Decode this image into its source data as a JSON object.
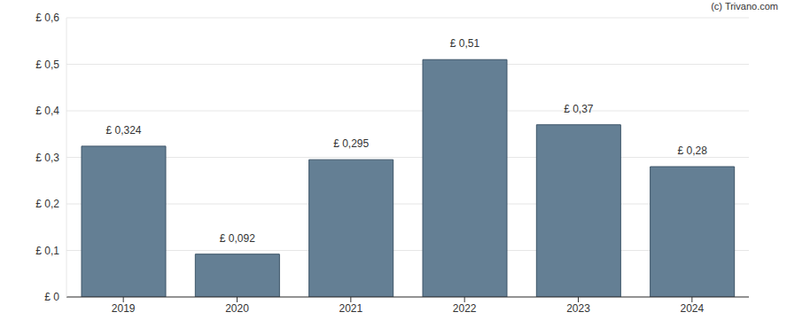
{
  "chart_data": {
    "type": "bar",
    "annotations": [
      "(c) Trivano.com"
    ],
    "categories": [
      "2019",
      "2020",
      "2021",
      "2022",
      "2023",
      "2024"
    ],
    "values": [
      0.324,
      0.092,
      0.295,
      0.51,
      0.37,
      0.28
    ],
    "value_labels": [
      "£ 0,324",
      "£ 0,092",
      "£ 0,295",
      "£ 0,51",
      "£ 0,37",
      "£ 0,28"
    ],
    "data_labels": true,
    "color": "#647f94",
    "ylim": [
      0,
      0.6
    ],
    "yticks": [
      {
        "value": 0,
        "label": "£ 0"
      },
      {
        "value": 0.1,
        "label": "£ 0,1"
      },
      {
        "value": 0.2,
        "label": "£ 0,2"
      },
      {
        "value": 0.3,
        "label": "£ 0,3"
      },
      {
        "value": 0.4,
        "label": "£ 0,4"
      },
      {
        "value": 0.5,
        "label": "£ 0,5"
      },
      {
        "value": 0.6,
        "label": "£ 0,6"
      }
    ],
    "grid": true
  }
}
